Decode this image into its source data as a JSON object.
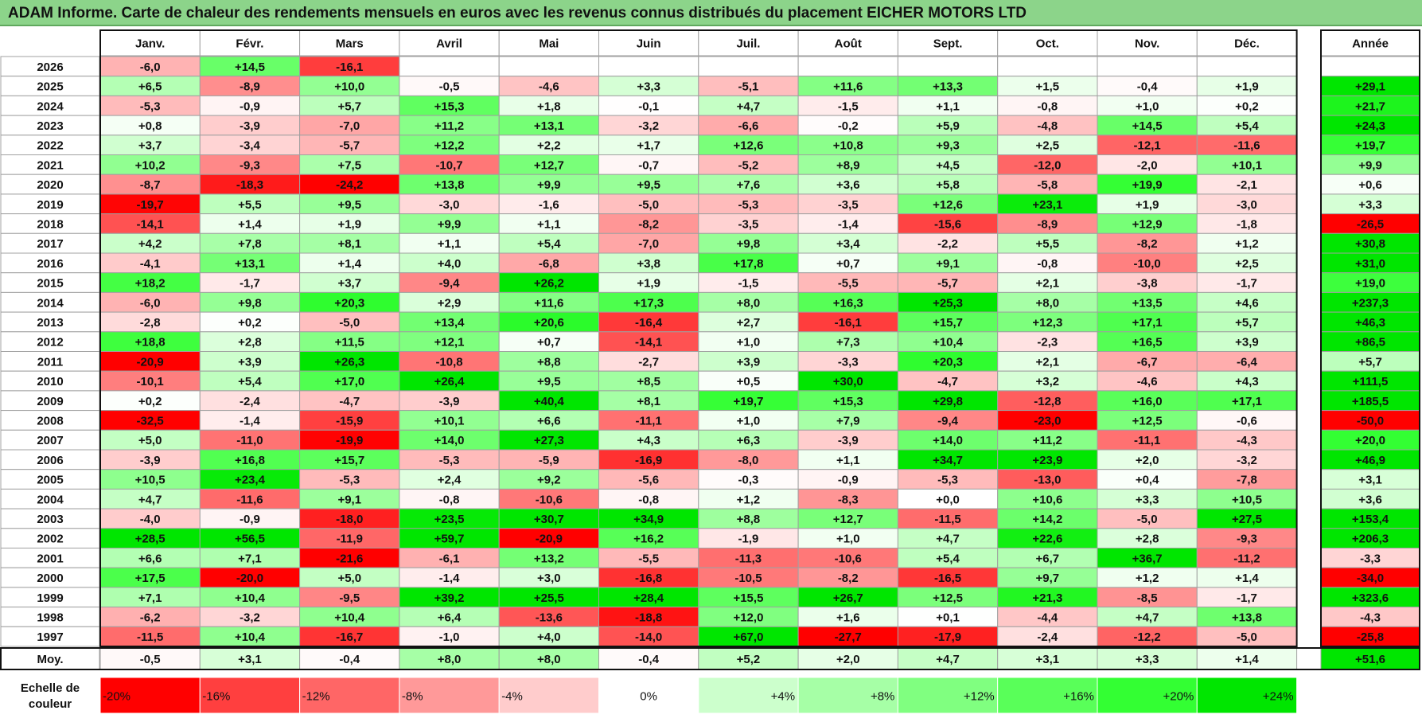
{
  "title": "ADAM Informe. Carte de chaleur des rendements mensuels en euros avec les revenus connus distribués du placement EICHER MOTORS LTD",
  "chart_data": {
    "type": "heatmap",
    "columns": [
      "Janv.",
      "Févr.",
      "Mars",
      "Avril",
      "Mai",
      "Juin",
      "Juil.",
      "Août",
      "Sept.",
      "Oct.",
      "Nov.",
      "Déc."
    ],
    "year_column_label": "Année",
    "rows": [
      {
        "year": "2026",
        "values": [
          "-6,0",
          "+14,5",
          "-16,1",
          "",
          "",
          "",
          "",
          "",
          "",
          "",
          "",
          ""
        ],
        "annual": ""
      },
      {
        "year": "2025",
        "values": [
          "+6,5",
          "-8,9",
          "+10,0",
          "-0,5",
          "-4,6",
          "+3,3",
          "-5,1",
          "+11,6",
          "+13,3",
          "+1,5",
          "-0,4",
          "+1,9"
        ],
        "annual": "+29,1"
      },
      {
        "year": "2024",
        "values": [
          "-5,3",
          "-0,9",
          "+5,7",
          "+15,3",
          "+1,8",
          "-0,1",
          "+4,7",
          "-1,5",
          "+1,1",
          "-0,8",
          "+1,0",
          "+0,2"
        ],
        "annual": "+21,7"
      },
      {
        "year": "2023",
        "values": [
          "+0,8",
          "-3,9",
          "-7,0",
          "+11,2",
          "+13,1",
          "-3,2",
          "-6,6",
          "-0,2",
          "+5,9",
          "-4,8",
          "+14,5",
          "+5,4"
        ],
        "annual": "+24,3"
      },
      {
        "year": "2022",
        "values": [
          "+3,7",
          "-3,4",
          "-5,7",
          "+12,2",
          "+2,2",
          "+1,7",
          "+12,6",
          "+10,8",
          "+9,3",
          "+2,5",
          "-12,1",
          "-11,6"
        ],
        "annual": "+19,7"
      },
      {
        "year": "2021",
        "values": [
          "+10,2",
          "-9,3",
          "+7,5",
          "-10,7",
          "+12,7",
          "-0,7",
          "-5,2",
          "+8,9",
          "+4,5",
          "-12,0",
          "-2,0",
          "+10,1"
        ],
        "annual": "+9,9"
      },
      {
        "year": "2020",
        "values": [
          "-8,7",
          "-18,3",
          "-24,2",
          "+13,8",
          "+9,9",
          "+9,5",
          "+7,6",
          "+3,6",
          "+5,8",
          "-5,8",
          "+19,9",
          "-2,1"
        ],
        "annual": "+0,6"
      },
      {
        "year": "2019",
        "values": [
          "-19,7",
          "+5,5",
          "+9,5",
          "-3,0",
          "-1,6",
          "-5,0",
          "-5,3",
          "-3,5",
          "+12,6",
          "+23,1",
          "+1,9",
          "-3,0"
        ],
        "annual": "+3,3"
      },
      {
        "year": "2018",
        "values": [
          "-14,1",
          "+1,4",
          "+1,9",
          "+9,9",
          "+1,1",
          "-8,2",
          "-3,5",
          "-1,4",
          "-15,6",
          "-8,9",
          "+12,9",
          "-1,8"
        ],
        "annual": "-26,5"
      },
      {
        "year": "2017",
        "values": [
          "+4,2",
          "+7,8",
          "+8,1",
          "+1,1",
          "+5,4",
          "-7,0",
          "+9,8",
          "+3,4",
          "-2,2",
          "+5,5",
          "-8,2",
          "+1,2"
        ],
        "annual": "+30,8"
      },
      {
        "year": "2016",
        "values": [
          "-4,1",
          "+13,1",
          "+1,4",
          "+4,0",
          "-6,8",
          "+3,8",
          "+17,8",
          "+0,7",
          "+9,1",
          "-0,8",
          "-10,0",
          "+2,5"
        ],
        "annual": "+31,0"
      },
      {
        "year": "2015",
        "values": [
          "+18,2",
          "-1,7",
          "+3,7",
          "-9,4",
          "+26,2",
          "+1,9",
          "-1,5",
          "-5,5",
          "-5,7",
          "+2,1",
          "-3,8",
          "-1,7"
        ],
        "annual": "+19,0"
      },
      {
        "year": "2014",
        "values": [
          "-6,0",
          "+9,8",
          "+20,3",
          "+2,9",
          "+11,6",
          "+17,3",
          "+8,0",
          "+16,3",
          "+25,3",
          "+8,0",
          "+13,5",
          "+4,6"
        ],
        "annual": "+237,3"
      },
      {
        "year": "2013",
        "values": [
          "-2,8",
          "+0,2",
          "-5,0",
          "+13,4",
          "+20,6",
          "-16,4",
          "+2,7",
          "-16,1",
          "+15,7",
          "+12,3",
          "+17,1",
          "+5,7"
        ],
        "annual": "+46,3"
      },
      {
        "year": "2012",
        "values": [
          "+18,8",
          "+2,8",
          "+11,5",
          "+12,1",
          "+0,7",
          "-14,1",
          "+1,0",
          "+7,3",
          "+10,4",
          "-2,3",
          "+16,5",
          "+3,9"
        ],
        "annual": "+86,5"
      },
      {
        "year": "2011",
        "values": [
          "-20,9",
          "+3,9",
          "+26,3",
          "-10,8",
          "+8,8",
          "-2,7",
          "+3,9",
          "-3,3",
          "+20,3",
          "+2,1",
          "-6,7",
          "-6,4"
        ],
        "annual": "+5,7"
      },
      {
        "year": "2010",
        "values": [
          "-10,1",
          "+5,4",
          "+17,0",
          "+26,4",
          "+9,5",
          "+8,5",
          "+0,5",
          "+30,0",
          "-4,7",
          "+3,2",
          "-4,6",
          "+4,3"
        ],
        "annual": "+111,5"
      },
      {
        "year": "2009",
        "values": [
          "+0,2",
          "-2,4",
          "-4,7",
          "-3,9",
          "+40,4",
          "+8,1",
          "+19,7",
          "+15,3",
          "+29,8",
          "-12,8",
          "+16,0",
          "+17,1"
        ],
        "annual": "+185,5"
      },
      {
        "year": "2008",
        "values": [
          "-32,5",
          "-1,4",
          "-15,9",
          "+10,1",
          "+6,6",
          "-11,1",
          "+1,0",
          "+7,9",
          "-9,4",
          "-23,0",
          "+12,5",
          "-0,6"
        ],
        "annual": "-50,0"
      },
      {
        "year": "2007",
        "values": [
          "+5,0",
          "-11,0",
          "-19,9",
          "+14,0",
          "+27,3",
          "+4,3",
          "+6,3",
          "-3,9",
          "+14,0",
          "+11,2",
          "-11,1",
          "-4,3"
        ],
        "annual": "+20,0"
      },
      {
        "year": "2006",
        "values": [
          "-3,9",
          "+16,8",
          "+15,7",
          "-5,3",
          "-5,9",
          "-16,9",
          "-8,0",
          "+1,1",
          "+34,7",
          "+23,9",
          "+2,0",
          "-3,2"
        ],
        "annual": "+46,9"
      },
      {
        "year": "2005",
        "values": [
          "+10,5",
          "+23,4",
          "-5,3",
          "+2,4",
          "+9,2",
          "-5,6",
          "-0,3",
          "-0,9",
          "-5,3",
          "-13,0",
          "+0,4",
          "-7,8"
        ],
        "annual": "+3,1"
      },
      {
        "year": "2004",
        "values": [
          "+4,7",
          "-11,6",
          "+9,1",
          "-0,8",
          "-10,6",
          "-0,8",
          "+1,2",
          "-8,3",
          "+0,0",
          "+10,6",
          "+3,3",
          "+10,5"
        ],
        "annual": "+3,6"
      },
      {
        "year": "2003",
        "values": [
          "-4,0",
          "-0,9",
          "-18,0",
          "+23,5",
          "+30,7",
          "+34,9",
          "+8,8",
          "+12,7",
          "-11,5",
          "+14,2",
          "-5,0",
          "+27,5"
        ],
        "annual": "+153,4"
      },
      {
        "year": "2002",
        "values": [
          "+28,5",
          "+56,5",
          "-11,9",
          "+59,7",
          "-20,9",
          "+16,2",
          "-1,9",
          "+1,0",
          "+4,7",
          "+22,6",
          "+2,8",
          "-9,3"
        ],
        "annual": "+206,3"
      },
      {
        "year": "2001",
        "values": [
          "+6,6",
          "+7,1",
          "-21,6",
          "-6,1",
          "+13,2",
          "-5,5",
          "-11,3",
          "-10,6",
          "+5,4",
          "+6,7",
          "+36,7",
          "-11,2"
        ],
        "annual": "-3,3"
      },
      {
        "year": "2000",
        "values": [
          "+17,5",
          "-20,0",
          "+5,0",
          "-1,4",
          "+3,0",
          "-16,8",
          "-10,5",
          "-8,2",
          "-16,5",
          "+9,7",
          "+1,2",
          "+1,4"
        ],
        "annual": "-34,0"
      },
      {
        "year": "1999",
        "values": [
          "+7,1",
          "+10,4",
          "-9,5",
          "+39,2",
          "+25,5",
          "+28,4",
          "+15,5",
          "+26,7",
          "+12,5",
          "+21,3",
          "-8,5",
          "-1,7"
        ],
        "annual": "+323,6"
      },
      {
        "year": "1998",
        "values": [
          "-6,2",
          "-3,2",
          "+10,4",
          "+6,4",
          "-13,6",
          "-18,8",
          "+12,0",
          "+1,6",
          "+0,1",
          "-4,4",
          "+4,7",
          "+13,8"
        ],
        "annual": "-4,3"
      },
      {
        "year": "1997",
        "values": [
          "-11,5",
          "+10,4",
          "-16,7",
          "-1,0",
          "+4,0",
          "-14,0",
          "+67,0",
          "-27,7",
          "-17,9",
          "-2,4",
          "-12,2",
          "-5,0"
        ],
        "annual": "-25,8"
      }
    ],
    "average_row": {
      "label": "Moy.",
      "values": [
        "-0,5",
        "+3,1",
        "-0,4",
        "+8,0",
        "+8,0",
        "-0,4",
        "+5,2",
        "+2,0",
        "+4,7",
        "+3,1",
        "+3,3",
        "+1,4"
      ],
      "annual": "+51,6"
    },
    "color_scale": {
      "label_line1": "Echelle de",
      "label_line2": "couleur",
      "stops": [
        {
          "label": "-20%",
          "value": -20,
          "color": "#FF0000"
        },
        {
          "label": "-16%",
          "value": -16,
          "color": "#FF3F3F"
        },
        {
          "label": "-12%",
          "value": -12,
          "color": "#FF6666"
        },
        {
          "label": "-8%",
          "value": -8,
          "color": "#FF9999"
        },
        {
          "label": "-4%",
          "value": -4,
          "color": "#FFCCCC"
        },
        {
          "label": "0%",
          "value": 0,
          "color": "#FFFFFF"
        },
        {
          "label": "+4%",
          "value": 4,
          "color": "#CCFFCC"
        },
        {
          "label": "+8%",
          "value": 8,
          "color": "#A6FFA6"
        },
        {
          "label": "+12%",
          "value": 12,
          "color": "#80FF80"
        },
        {
          "label": "+16%",
          "value": 16,
          "color": "#59FF59"
        },
        {
          "label": "+20%",
          "value": 20,
          "color": "#33FF33"
        },
        {
          "label": "+24%",
          "value": 24,
          "color": "#00E600"
        }
      ]
    }
  },
  "colors": {
    "title_background": "#8CD48A",
    "grid_border": "#A0A0A0"
  }
}
